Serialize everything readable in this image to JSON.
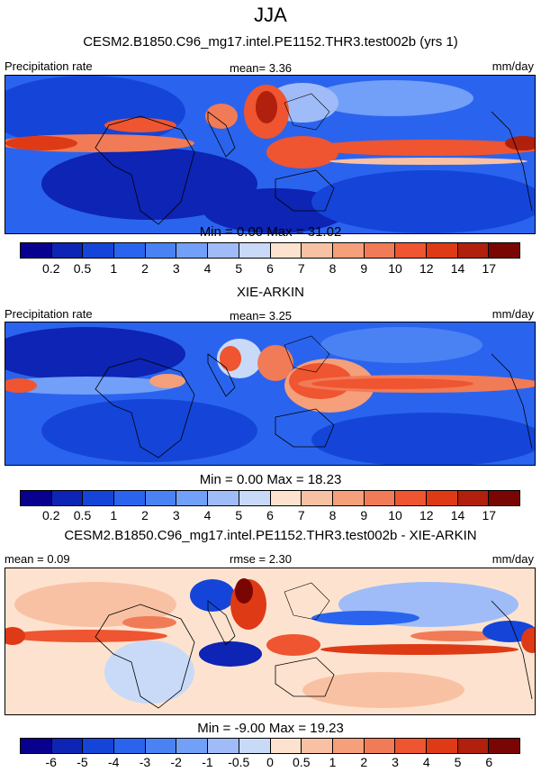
{
  "title": "JJA",
  "panels": [
    {
      "title": "CESM2.B1850.C96_mg17.intel.PE1152.THR3.test002b (yrs 1)",
      "left_label": "Precipitation rate",
      "center_label": "mean=   3.36",
      "right_label": "mm/day",
      "minmax": "Min =   0.00 Max =  31.02",
      "colorbar": {
        "colors": [
          "#08008f",
          "#0d24b4",
          "#1445d8",
          "#2a64ee",
          "#4a82f4",
          "#729ff7",
          "#9fbcf8",
          "#c8daf8",
          "#fde3cf",
          "#f9c1a3",
          "#f59f7b",
          "#f17b56",
          "#ee5530",
          "#de3a16",
          "#b0200c",
          "#7a0603"
        ],
        "ticks": [
          "0.2",
          "0.5",
          "1",
          "2",
          "3",
          "4",
          "5",
          "6",
          "7",
          "8",
          "9",
          "10",
          "12",
          "14",
          "17"
        ]
      }
    },
    {
      "title": "XIE-ARKIN",
      "left_label": "Precipitation rate",
      "center_label": "mean=   3.25",
      "right_label": "mm/day",
      "minmax": "Min =   0.00 Max =  18.23",
      "colorbar": {
        "colors": [
          "#08008f",
          "#0d24b4",
          "#1445d8",
          "#2a64ee",
          "#4a82f4",
          "#729ff7",
          "#9fbcf8",
          "#c8daf8",
          "#fde3cf",
          "#f9c1a3",
          "#f59f7b",
          "#f17b56",
          "#ee5530",
          "#de3a16",
          "#b0200c",
          "#7a0603"
        ],
        "ticks": [
          "0.2",
          "0.5",
          "1",
          "2",
          "3",
          "4",
          "5",
          "6",
          "7",
          "8",
          "9",
          "10",
          "12",
          "14",
          "17"
        ]
      }
    },
    {
      "title": "CESM2.B1850.C96_mg17.intel.PE1152.THR3.test002b - XIE-ARKIN",
      "left_label": "mean =   0.09",
      "center_label": "rmse =   2.30",
      "right_label": "mm/day",
      "minmax": "Min =  -9.00 Max =  19.23",
      "colorbar": {
        "colors": [
          "#08008f",
          "#0d24b4",
          "#1445d8",
          "#2a64ee",
          "#4a82f4",
          "#729ff7",
          "#9fbcf8",
          "#c8daf8",
          "#fde3cf",
          "#f9c1a3",
          "#f59f7b",
          "#f17b56",
          "#ee5530",
          "#de3a16",
          "#b0200c",
          "#7a0603"
        ],
        "ticks": [
          "-6",
          "-5",
          "-4",
          "-3",
          "-2",
          "-1",
          "-0.5",
          "0",
          "0.5",
          "1",
          "2",
          "3",
          "4",
          "5",
          "6"
        ]
      }
    }
  ],
  "chart_data": [
    {
      "type": "heatmap",
      "title": "CESM2.B1850.C96_mg17.intel.PE1152.THR3.test002b (yrs 1)",
      "variable": "Precipitation rate",
      "units": "mm/day",
      "mean": 3.36,
      "min": 0.0,
      "max": 31.02,
      "contour_levels": [
        0.2,
        0.5,
        1,
        2,
        3,
        4,
        5,
        6,
        7,
        8,
        9,
        10,
        12,
        14,
        17
      ]
    },
    {
      "type": "heatmap",
      "title": "XIE-ARKIN",
      "variable": "Precipitation rate",
      "units": "mm/day",
      "mean": 3.25,
      "min": 0.0,
      "max": 18.23,
      "contour_levels": [
        0.2,
        0.5,
        1,
        2,
        3,
        4,
        5,
        6,
        7,
        8,
        9,
        10,
        12,
        14,
        17
      ]
    },
    {
      "type": "heatmap",
      "title": "CESM2.B1850.C96_mg17.intel.PE1152.THR3.test002b - XIE-ARKIN",
      "units": "mm/day",
      "mean": 0.09,
      "rmse": 2.3,
      "min": -9.0,
      "max": 19.23,
      "contour_levels": [
        -6,
        -5,
        -4,
        -3,
        -2,
        -1,
        -0.5,
        0,
        0.5,
        1,
        2,
        3,
        4,
        5,
        6
      ]
    }
  ]
}
